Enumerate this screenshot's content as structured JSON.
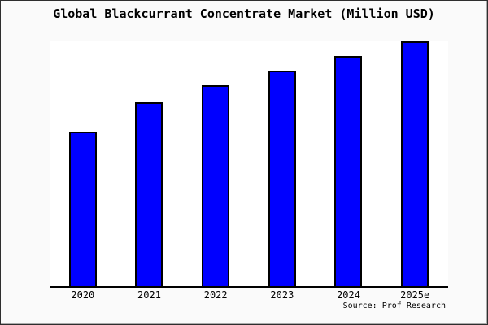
{
  "title": "Global Blackcurrant Concentrate Market (Million USD)",
  "source": "Source: Prof Research",
  "colors": {
    "bar_fill": "#0000ff",
    "bar_border": "#000000",
    "axis": "#000000",
    "background": "#fafafa",
    "plot_background": "#ffffff"
  },
  "chart_data": {
    "type": "bar",
    "title": "Global Blackcurrant Concentrate Market (Million USD)",
    "categories": [
      "2020",
      "2021",
      "2022",
      "2023",
      "2024",
      "2025e"
    ],
    "values": [
      63,
      75,
      82,
      88,
      94,
      100
    ],
    "values_note": "no numeric y-axis shown; values estimated from bar pixel heights as percent of tallest bar (2025e = 100)",
    "xlabel": "",
    "ylabel": "",
    "ylim": [
      0,
      100
    ],
    "grid": false,
    "legend": "none",
    "source": "Source: Prof Research"
  }
}
